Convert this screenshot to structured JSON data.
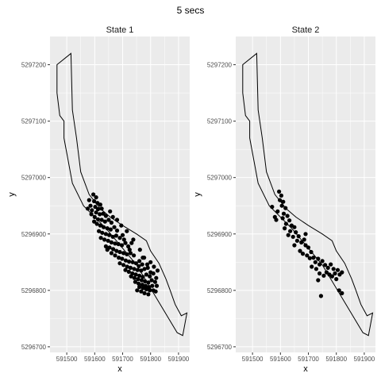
{
  "chart_data": {
    "type": "scatter",
    "title": "5 secs",
    "xlabel": "x",
    "ylabel": "y",
    "xlim": [
      591440,
      591940
    ],
    "ylim": [
      5296690,
      5297250
    ],
    "x_ticks": [
      591500,
      591600,
      591700,
      591800,
      591900
    ],
    "x_tick_labels": [
      "591500",
      "591600",
      "591700",
      "591800",
      "591900"
    ],
    "y_ticks": [
      5296700,
      5296800,
      5296900,
      5297000,
      5297100,
      5297200
    ],
    "y_tick_labels": [
      "5296700",
      "5296800",
      "5296900",
      "5297000",
      "5297100",
      "5297200"
    ],
    "boundary": [
      [
        591465,
        5297200
      ],
      [
        591515,
        5297220
      ],
      [
        591520,
        5297120
      ],
      [
        591535,
        5297070
      ],
      [
        591550,
        5297010
      ],
      [
        591580,
        5296970
      ],
      [
        591620,
        5296945
      ],
      [
        591655,
        5296930
      ],
      [
        591700,
        5296915
      ],
      [
        591750,
        5296900
      ],
      [
        591785,
        5296888
      ],
      [
        591800,
        5296870
      ],
      [
        591830,
        5296848
      ],
      [
        591855,
        5296820
      ],
      [
        591870,
        5296800
      ],
      [
        591888,
        5296775
      ],
      [
        591910,
        5296755
      ],
      [
        591930,
        5296760
      ],
      [
        591915,
        5296720
      ],
      [
        591895,
        5296725
      ],
      [
        591750,
        5296845
      ],
      [
        591640,
        5296910
      ],
      [
        591560,
        5296950
      ],
      [
        591520,
        5296990
      ],
      [
        591505,
        5297030
      ],
      [
        591490,
        5297070
      ],
      [
        591490,
        5297100
      ],
      [
        591475,
        5297110
      ],
      [
        591465,
        5297150
      ],
      [
        591465,
        5297200
      ]
    ],
    "panels": [
      {
        "name": "State 1",
        "points": [
          [
            591595,
            5296970
          ],
          [
            591605,
            5296965
          ],
          [
            591598,
            5296958
          ],
          [
            591610,
            5296955
          ],
          [
            591620,
            5296952
          ],
          [
            591602,
            5296948
          ],
          [
            591612,
            5296944
          ],
          [
            591625,
            5296945
          ],
          [
            591590,
            5296942
          ],
          [
            591605,
            5296938
          ],
          [
            591618,
            5296935
          ],
          [
            591630,
            5296936
          ],
          [
            591640,
            5296932
          ],
          [
            591600,
            5296930
          ],
          [
            591612,
            5296926
          ],
          [
            591625,
            5296925
          ],
          [
            591637,
            5296922
          ],
          [
            591650,
            5296925
          ],
          [
            591660,
            5296920
          ],
          [
            591608,
            5296918
          ],
          [
            591620,
            5296915
          ],
          [
            591632,
            5296912
          ],
          [
            591645,
            5296910
          ],
          [
            591657,
            5296908
          ],
          [
            591670,
            5296912
          ],
          [
            591680,
            5296906
          ],
          [
            591615,
            5296905
          ],
          [
            591627,
            5296902
          ],
          [
            591640,
            5296900
          ],
          [
            591652,
            5296898
          ],
          [
            591665,
            5296895
          ],
          [
            591677,
            5296897
          ],
          [
            591690,
            5296893
          ],
          [
            591700,
            5296898
          ],
          [
            591622,
            5296893
          ],
          [
            591635,
            5296890
          ],
          [
            591648,
            5296888
          ],
          [
            591660,
            5296885
          ],
          [
            591673,
            5296883
          ],
          [
            591685,
            5296882
          ],
          [
            591697,
            5296880
          ],
          [
            591710,
            5296884
          ],
          [
            591720,
            5296878
          ],
          [
            591640,
            5296878
          ],
          [
            591653,
            5296876
          ],
          [
            591666,
            5296873
          ],
          [
            591678,
            5296870
          ],
          [
            591690,
            5296868
          ],
          [
            591703,
            5296866
          ],
          [
            591715,
            5296864
          ],
          [
            591728,
            5296866
          ],
          [
            591740,
            5296862
          ],
          [
            591660,
            5296866
          ],
          [
            591673,
            5296862
          ],
          [
            591686,
            5296858
          ],
          [
            591698,
            5296856
          ],
          [
            591711,
            5296853
          ],
          [
            591723,
            5296851
          ],
          [
            591736,
            5296850
          ],
          [
            591748,
            5296848
          ],
          [
            591760,
            5296852
          ],
          [
            591770,
            5296846
          ],
          [
            591690,
            5296848
          ],
          [
            591703,
            5296845
          ],
          [
            591716,
            5296842
          ],
          [
            591728,
            5296840
          ],
          [
            591741,
            5296838
          ],
          [
            591753,
            5296836
          ],
          [
            591766,
            5296835
          ],
          [
            591778,
            5296838
          ],
          [
            591790,
            5296840
          ],
          [
            591800,
            5296832
          ],
          [
            591710,
            5296836
          ],
          [
            591722,
            5296833
          ],
          [
            591735,
            5296830
          ],
          [
            591747,
            5296828
          ],
          [
            591760,
            5296826
          ],
          [
            591772,
            5296824
          ],
          [
            591785,
            5296828
          ],
          [
            591797,
            5296825
          ],
          [
            591810,
            5296830
          ],
          [
            591820,
            5296822
          ],
          [
            591730,
            5296825
          ],
          [
            591742,
            5296822
          ],
          [
            591755,
            5296820
          ],
          [
            591768,
            5296818
          ],
          [
            591780,
            5296816
          ],
          [
            591792,
            5296814
          ],
          [
            591804,
            5296818
          ],
          [
            591816,
            5296815
          ],
          [
            591745,
            5296815
          ],
          [
            591757,
            5296812
          ],
          [
            591770,
            5296810
          ],
          [
            591782,
            5296808
          ],
          [
            591794,
            5296806
          ],
          [
            591806,
            5296808
          ],
          [
            591760,
            5296806
          ],
          [
            591773,
            5296804
          ],
          [
            591785,
            5296802
          ],
          [
            591797,
            5296800
          ],
          [
            591580,
            5296960
          ],
          [
            591585,
            5296950
          ],
          [
            591575,
            5296945
          ],
          [
            591588,
            5296935
          ],
          [
            591598,
            5296922
          ],
          [
            591645,
            5296872
          ],
          [
            591705,
            5296890
          ],
          [
            591725,
            5296872
          ],
          [
            591758,
            5296843
          ],
          [
            591788,
            5296846
          ],
          [
            591812,
            5296842
          ],
          [
            591825,
            5296835
          ],
          [
            591680,
            5296925
          ],
          [
            591665,
            5296930
          ],
          [
            591695,
            5296915
          ],
          [
            591715,
            5296905
          ],
          [
            591738,
            5296890
          ],
          [
            591762,
            5296872
          ],
          [
            591777,
            5296858
          ],
          [
            591800,
            5296850
          ],
          [
            591752,
            5296800
          ],
          [
            591766,
            5296798
          ],
          [
            591778,
            5296795
          ],
          [
            591792,
            5296793
          ],
          [
            591810,
            5296800
          ],
          [
            591822,
            5296808
          ],
          [
            591818,
            5296798
          ],
          [
            591772,
            5296858
          ],
          [
            591732,
            5296884
          ],
          [
            591655,
            5296940
          ]
        ]
      },
      {
        "name": "State 2",
        "points": [
          [
            591595,
            5296975
          ],
          [
            591603,
            5296968
          ],
          [
            591598,
            5296960
          ],
          [
            591610,
            5296957
          ],
          [
            591605,
            5296950
          ],
          [
            591618,
            5296946
          ],
          [
            591590,
            5296940
          ],
          [
            591612,
            5296936
          ],
          [
            591625,
            5296932
          ],
          [
            591580,
            5296930
          ],
          [
            591632,
            5296924
          ],
          [
            591620,
            5296918
          ],
          [
            591640,
            5296915
          ],
          [
            591650,
            5296912
          ],
          [
            591635,
            5296905
          ],
          [
            591655,
            5296903
          ],
          [
            591645,
            5296895
          ],
          [
            591665,
            5296896
          ],
          [
            591660,
            5296888
          ],
          [
            591675,
            5296885
          ],
          [
            591685,
            5296890
          ],
          [
            591690,
            5296880
          ],
          [
            591700,
            5296876
          ],
          [
            591670,
            5296870
          ],
          [
            591680,
            5296865
          ],
          [
            591695,
            5296862
          ],
          [
            591710,
            5296868
          ],
          [
            591705,
            5296857
          ],
          [
            591718,
            5296858
          ],
          [
            591725,
            5296850
          ],
          [
            591735,
            5296856
          ],
          [
            591740,
            5296846
          ],
          [
            591750,
            5296852
          ],
          [
            591760,
            5296845
          ],
          [
            591770,
            5296840
          ],
          [
            591780,
            5296846
          ],
          [
            591790,
            5296838
          ],
          [
            591765,
            5296832
          ],
          [
            591775,
            5296828
          ],
          [
            591785,
            5296825
          ],
          [
            591795,
            5296830
          ],
          [
            591805,
            5296836
          ],
          [
            591812,
            5296828
          ],
          [
            591800,
            5296820
          ],
          [
            591820,
            5296832
          ],
          [
            591740,
            5296830
          ],
          [
            591755,
            5296826
          ],
          [
            591735,
            5296818
          ],
          [
            591570,
            5296948
          ],
          [
            591585,
            5296925
          ],
          [
            591615,
            5296910
          ],
          [
            591628,
            5296898
          ],
          [
            591690,
            5296900
          ],
          [
            591712,
            5296842
          ],
          [
            591728,
            5296838
          ],
          [
            591810,
            5296800
          ],
          [
            591820,
            5296795
          ],
          [
            591745,
            5296790
          ],
          [
            591608,
            5296928
          ],
          [
            591650,
            5296880
          ]
        ]
      }
    ]
  }
}
